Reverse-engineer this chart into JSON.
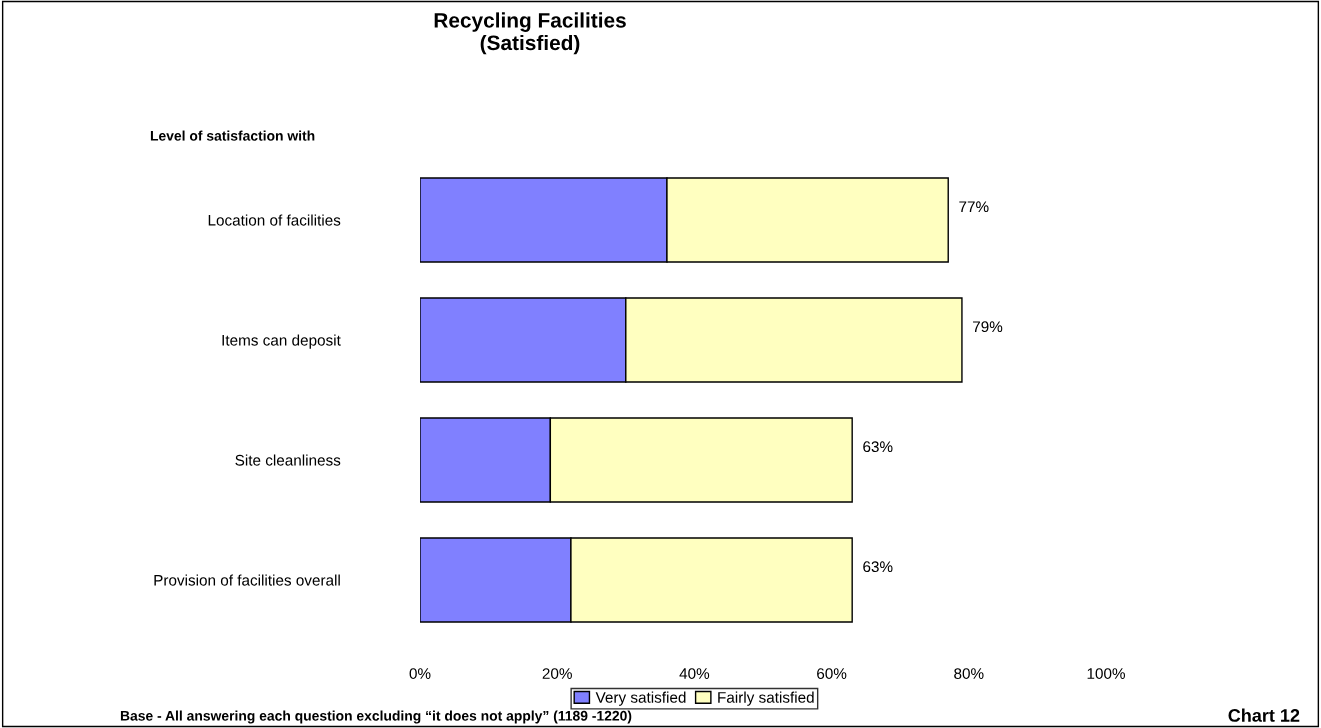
{
  "chart_data": {
    "type": "bar",
    "orientation": "horizontal",
    "stacked": true,
    "title": "Recycling Facilities\n(Satisfied)",
    "categories": [
      "Location of facilities",
      "Items can deposit",
      "Site cleanliness",
      "Provision of facilities overall"
    ],
    "series": [
      {
        "name": "Very satisfied",
        "color": "#8080ff",
        "values": [
          36,
          30,
          19,
          22
        ]
      },
      {
        "name": "Fairly satisfied",
        "color": "#ffffc0",
        "values": [
          41,
          49,
          44,
          41
        ]
      }
    ],
    "totals": [
      "77%",
      "79%",
      "63%",
      "63%"
    ],
    "xlim": [
      0,
      100
    ],
    "xticks": [
      {
        "value": 0,
        "label": "0%"
      },
      {
        "value": 20,
        "label": "20%"
      },
      {
        "value": 40,
        "label": "40%"
      },
      {
        "value": 60,
        "label": "60%"
      },
      {
        "value": 80,
        "label": "80%"
      },
      {
        "value": 100,
        "label": "100%"
      }
    ],
    "annotations": [
      "Level of satisfaction with",
      "Base - All answering each question excluding “it does not apply” (1189 -1220)",
      "Chart 12"
    ],
    "grid": false,
    "legend": "bottom"
  }
}
